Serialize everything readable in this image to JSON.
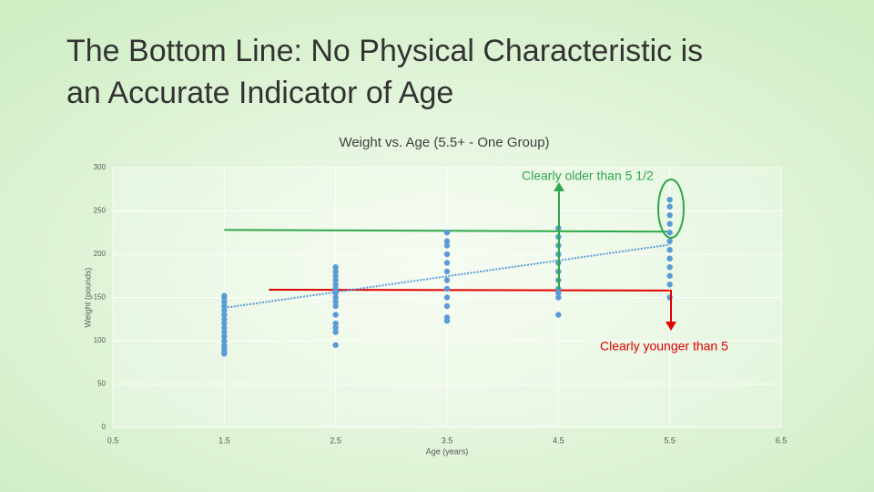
{
  "slide_title": "The Bottom Line: No Physical Characteristic is an Accurate Indicator of Age",
  "chart_data": {
    "type": "scatter",
    "title": "Weight vs. Age (5.5+ - One Group)",
    "x_label": "Age (years)",
    "y_label": "Weight (pounds)",
    "xlim": [
      0.5,
      6.5
    ],
    "xticks": [
      0.5,
      1.5,
      2.5,
      3.5,
      4.5,
      5.5,
      6.5
    ],
    "ylim": [
      0,
      300
    ],
    "yticks": [
      0,
      50,
      100,
      150,
      200,
      250,
      300
    ],
    "grid": true,
    "series": [
      {
        "color": "#5b9bd5",
        "x": [
          1.5,
          1.5,
          1.5,
          1.5,
          1.5,
          1.5,
          1.5,
          1.5,
          1.5,
          1.5,
          1.5,
          1.5,
          1.5,
          1.5,
          1.5,
          1.5,
          2.5,
          2.5,
          2.5,
          2.5,
          2.5,
          2.5,
          2.5,
          2.5,
          2.5,
          2.5,
          2.5,
          2.5,
          2.5,
          2.5,
          2.5,
          3.5,
          3.5,
          3.5,
          3.5,
          3.5,
          3.5,
          3.5,
          3.5,
          3.5,
          3.5,
          3.5,
          3.5,
          4.5,
          4.5,
          4.5,
          4.5,
          4.5,
          4.5,
          4.5,
          4.5,
          4.5,
          4.5,
          4.5,
          5.5,
          5.5,
          5.5,
          5.5,
          5.5,
          5.5,
          5.5,
          5.5,
          5.5,
          5.5,
          5.5,
          5.5
        ],
        "values": [
          85,
          88,
          92,
          95,
          100,
          105,
          110,
          115,
          120,
          125,
          130,
          135,
          140,
          145,
          150,
          152,
          95,
          110,
          115,
          120,
          130,
          140,
          145,
          150,
          155,
          160,
          165,
          170,
          175,
          180,
          185,
          123,
          127,
          140,
          150,
          160,
          170,
          180,
          190,
          200,
          210,
          215,
          225,
          130,
          150,
          155,
          160,
          170,
          180,
          190,
          200,
          210,
          220,
          230,
          150,
          165,
          175,
          185,
          195,
          205,
          215,
          225,
          235,
          245,
          255,
          263
        ]
      }
    ],
    "trendline": {
      "color": "#5b9bd5",
      "x": [
        1.5,
        5.5
      ],
      "values": [
        138,
        211
      ]
    },
    "reference_lines": [
      {
        "color": "#2ea84a",
        "x": [
          1.5,
          5.5
        ],
        "values": [
          228,
          226
        ]
      },
      {
        "color": "#e00000",
        "x": [
          1.9,
          5.5
        ],
        "values": [
          159,
          158
        ]
      }
    ],
    "annotations": [
      {
        "text": "Clearly older than 5 1/2",
        "color": "#2ea84a"
      },
      {
        "text": "Clearly younger than 5",
        "color": "#e00000"
      }
    ]
  }
}
